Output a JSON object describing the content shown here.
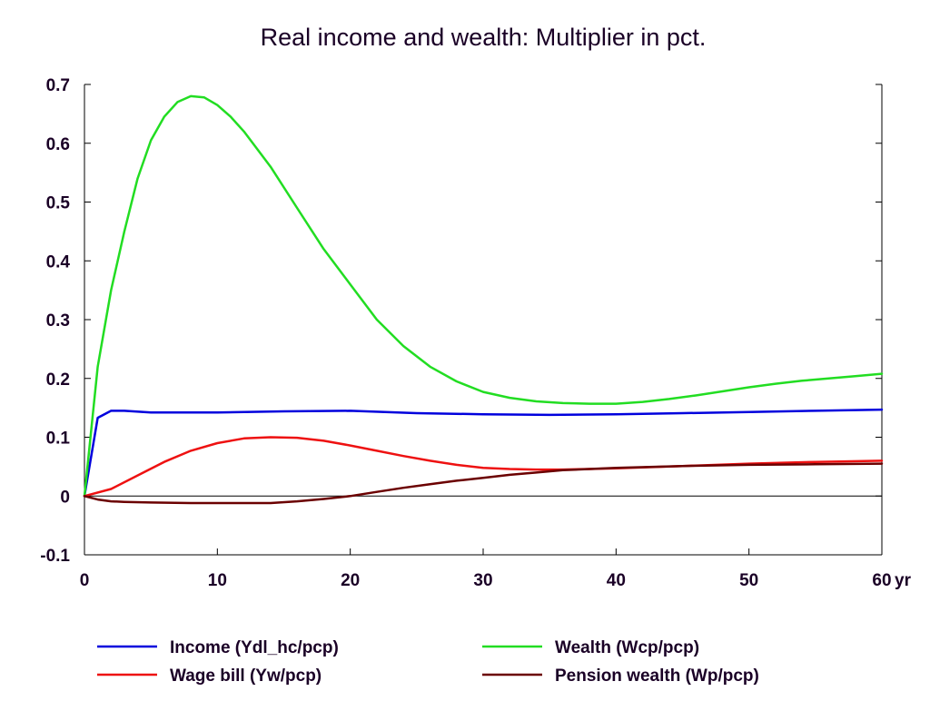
{
  "chart_data": {
    "type": "line",
    "title": "Real income and wealth: Multiplier in pct.",
    "xlabel": "",
    "ylabel": "",
    "x_unit_label": "yr",
    "xlim": [
      0,
      60
    ],
    "ylim": [
      -0.1,
      0.7
    ],
    "x_ticks": [
      0,
      10,
      20,
      30,
      40,
      50,
      60
    ],
    "x_tick_labels": [
      "0",
      "10",
      "20",
      "30",
      "40",
      "50",
      "60"
    ],
    "y_ticks": [
      -0.1,
      0,
      0.1,
      0.2,
      0.3,
      0.4,
      0.5,
      0.6,
      0.7
    ],
    "y_tick_labels": [
      "-0.1",
      "0",
      "0.1",
      "0.2",
      "0.3",
      "0.4",
      "0.5",
      "0.6",
      "0.7"
    ],
    "grid": false,
    "zero_line": true,
    "legend_position": "bottom",
    "series": [
      {
        "name": "Income (Ydl_hc/pcp)",
        "color": "#0000dd",
        "x": [
          0,
          1,
          2,
          3,
          5,
          10,
          15,
          20,
          25,
          30,
          35,
          40,
          45,
          50,
          55,
          60
        ],
        "y": [
          0,
          0.133,
          0.145,
          0.145,
          0.142,
          0.142,
          0.144,
          0.145,
          0.141,
          0.139,
          0.138,
          0.139,
          0.141,
          0.143,
          0.145,
          0.147
        ]
      },
      {
        "name": "Wealth (Wcp/pcp)",
        "color": "#22dd22",
        "x": [
          0,
          1,
          2,
          3,
          4,
          5,
          6,
          7,
          8,
          9,
          10,
          11,
          12,
          14,
          16,
          18,
          20,
          22,
          24,
          26,
          28,
          30,
          32,
          34,
          36,
          38,
          40,
          42,
          44,
          46,
          48,
          50,
          52,
          54,
          56,
          58,
          60
        ],
        "y": [
          0,
          0.22,
          0.35,
          0.45,
          0.54,
          0.605,
          0.645,
          0.67,
          0.68,
          0.678,
          0.665,
          0.645,
          0.62,
          0.56,
          0.49,
          0.42,
          0.36,
          0.3,
          0.255,
          0.22,
          0.195,
          0.177,
          0.167,
          0.161,
          0.158,
          0.157,
          0.157,
          0.16,
          0.165,
          0.171,
          0.178,
          0.185,
          0.191,
          0.196,
          0.2,
          0.204,
          0.208
        ]
      },
      {
        "name": "Wage bill (Yw/pcp)",
        "color": "#ee1111",
        "x": [
          0,
          2,
          4,
          6,
          8,
          10,
          12,
          14,
          16,
          18,
          20,
          22,
          24,
          26,
          28,
          30,
          32,
          34,
          36,
          38,
          40,
          45,
          50,
          55,
          60
        ],
        "y": [
          0,
          0.012,
          0.035,
          0.058,
          0.077,
          0.09,
          0.098,
          0.1,
          0.099,
          0.094,
          0.086,
          0.077,
          0.068,
          0.06,
          0.053,
          0.048,
          0.046,
          0.045,
          0.045,
          0.046,
          0.047,
          0.051,
          0.055,
          0.058,
          0.06
        ]
      },
      {
        "name": "Pension wealth (Wp/pcp)",
        "color": "#6b0000",
        "x": [
          0,
          1,
          2,
          3,
          5,
          8,
          10,
          12,
          14,
          16,
          18,
          20,
          22,
          24,
          26,
          28,
          30,
          32,
          34,
          36,
          38,
          40,
          45,
          50,
          55,
          60
        ],
        "y": [
          0,
          -0.006,
          -0.009,
          -0.01,
          -0.011,
          -0.012,
          -0.012,
          -0.012,
          -0.012,
          -0.009,
          -0.005,
          0,
          0.007,
          0.014,
          0.02,
          0.026,
          0.031,
          0.036,
          0.04,
          0.044,
          0.046,
          0.048,
          0.051,
          0.053,
          0.054,
          0.055
        ]
      }
    ]
  }
}
